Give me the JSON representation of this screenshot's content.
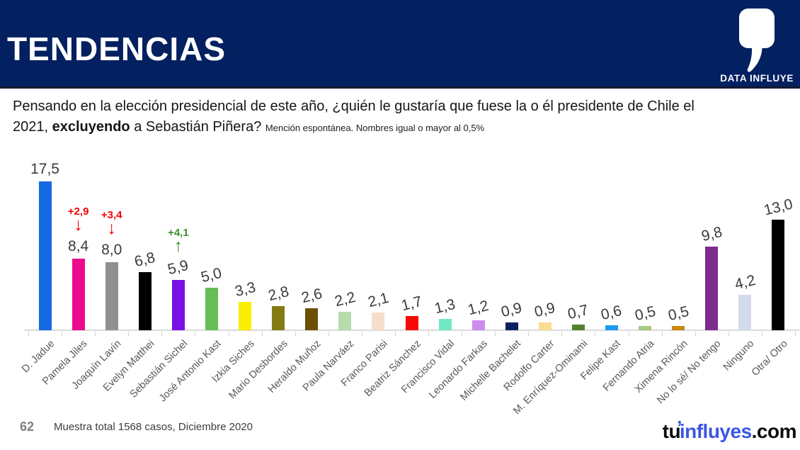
{
  "header": {
    "title": "TENDENCIAS",
    "brand": "DATA INFLUYE"
  },
  "question": {
    "line1": "Pensando en la elección presidencial de este año, ¿quién le gustaría que fuese la o él presidente de Chile el",
    "line2_prefix": "2021, ",
    "line2_bold": "excluyendo",
    "line2_suffix": " a Sebastián Piñera? ",
    "line2_note": "Mención espontánea. Nombres igual o mayor al 0,5%"
  },
  "chart_data": {
    "type": "bar",
    "categories": [
      "D. Jadue",
      "Pamela Jiles",
      "Joaquín Lavín",
      "Evelyn Matthei",
      "Sebastián Sichel",
      "José Antonio Kast",
      "Izkia Siches",
      "Mario Desbordes",
      "Heraldo Muñoz",
      "Paula Narváez",
      "Franco Parisi",
      "Beatriz Sánchez",
      "Francisco Vidal",
      "Leonardo Farkas",
      "Michelle Bachelet",
      "Rodolfo Carter",
      "M. Enríquez-Ominami",
      "Felipe Kast",
      "Fernando Atria",
      "Ximena Rincón",
      "No lo sé/ No tengo",
      "Ninguno",
      "Otra/ Otro"
    ],
    "values": [
      17.5,
      8.4,
      8.0,
      6.8,
      5.9,
      5.0,
      3.3,
      2.8,
      2.6,
      2.2,
      2.1,
      1.7,
      1.3,
      1.2,
      0.9,
      0.9,
      0.7,
      0.6,
      0.5,
      0.5,
      9.8,
      4.2,
      13.0
    ],
    "value_labels": [
      "17,5",
      "8,4",
      "8,0",
      "6,8",
      "5,9",
      "5,0",
      "3,3",
      "2,8",
      "2,6",
      "2,2",
      "2,1",
      "1,7",
      "1,3",
      "1,2",
      "0,9",
      "0,9",
      "0,7",
      "0,6",
      "0,5",
      "0,5",
      "9,8",
      "4,2",
      "13,0"
    ],
    "bar_colors": [
      "#1569e2",
      "#ea0b8c",
      "#909090",
      "#000000",
      "#7a10e6",
      "#69bd55",
      "#fcee00",
      "#847a12",
      "#6a4f05",
      "#b6dbad",
      "#f5decb",
      "#f90606",
      "#6fe9c4",
      "#cb8cee",
      "#0a2163",
      "#fbdd90",
      "#54812c",
      "#1d9af0",
      "#a6ca81",
      "#c8880b",
      "#7c2c8f",
      "#d2dbea",
      "#000000"
    ],
    "annotations": [
      {
        "index": 1,
        "category": "Pamela Jiles",
        "label": "+2,9",
        "direction": "down",
        "color": "#f40000"
      },
      {
        "index": 2,
        "category": "Joaquín Lavín",
        "label": "+3,4",
        "direction": "down",
        "color": "#f40000"
      },
      {
        "index": 4,
        "category": "Sebastián Sichel",
        "label": "+4,1",
        "direction": "up",
        "color": "#3e8e2d"
      }
    ],
    "ylim": [
      0,
      18
    ],
    "grid": false,
    "axis_line_color": "#dadada",
    "value_label_color": "#3a3a3a",
    "category_label_color": "#595959"
  },
  "footer": {
    "page_number": "62",
    "sample_note": "Muestra total 1568 casos,  Diciembre 2020",
    "logo": {
      "tu": "tu",
      "apostrophe": "’",
      "influyes": "influyes",
      "com": ".com"
    }
  },
  "colors": {
    "header_navy": "#032060",
    "logo_blue": "#3a56e4",
    "delta_red": "#f40000",
    "delta_green": "#3e8e2d"
  }
}
